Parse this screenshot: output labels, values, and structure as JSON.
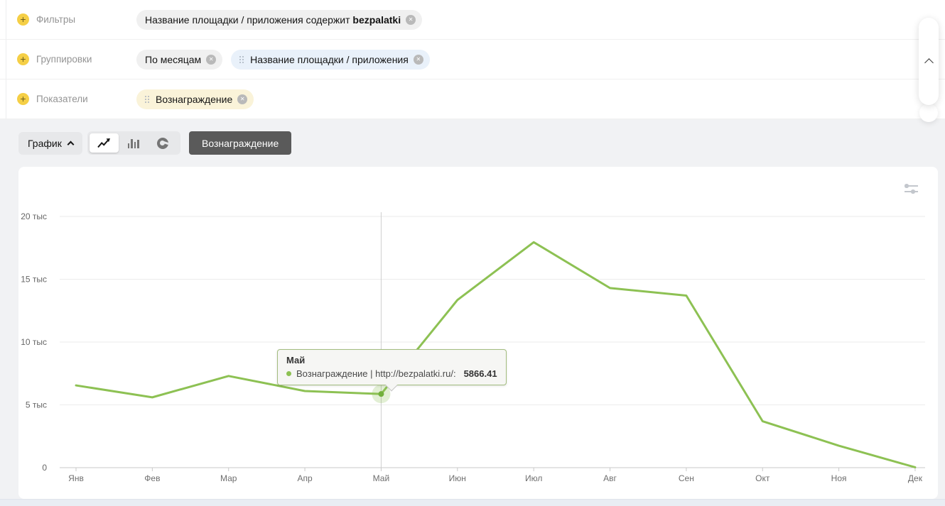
{
  "icons": {
    "add": "+",
    "close": "✕"
  },
  "colors": {
    "accent_green": "#8dc153",
    "point_green": "#72b03c",
    "chip_gray": "#f0f0f0",
    "chip_blue": "#e9f1fa",
    "chip_yellow": "#faf3d9",
    "plus_yellow": "#f5cf46",
    "dark_button": "#5a5a5a",
    "page_background": "#f1f2f4"
  },
  "filters_panel": {
    "rows": [
      {
        "label": "Фильтры",
        "chip": {
          "text": "Название площадки / приложения содержит",
          "bold": "bezpalatki"
        }
      },
      {
        "label": "Группировки",
        "chip1": {
          "text": "По месяцам"
        },
        "chip2": {
          "text": "Название площадки / приложения"
        }
      },
      {
        "label": "Показатели",
        "chip": {
          "text": "Вознаграждение"
        }
      }
    ]
  },
  "toolbar": {
    "chart_selector_label": "График",
    "chart_type_options": [
      "line",
      "bar",
      "pie"
    ],
    "selected_chart_type": "line",
    "series_button_label": "Вознаграждение"
  },
  "chart_data": {
    "type": "line",
    "title": "",
    "xlabel": "",
    "ylabel": "",
    "grid": true,
    "ylim": [
      0,
      20000
    ],
    "yticks": [
      {
        "value": 0,
        "label": "0"
      },
      {
        "value": 5000,
        "label": "5 тыс"
      },
      {
        "value": 10000,
        "label": "10 тыс"
      },
      {
        "value": 15000,
        "label": "15 тыс"
      },
      {
        "value": 20000,
        "label": "20 тыс"
      }
    ],
    "categories": [
      "Янв",
      "Фев",
      "Мар",
      "Апр",
      "Май",
      "Июн",
      "Июл",
      "Авг",
      "Сен",
      "Окт",
      "Ноя",
      "Дек"
    ],
    "series": [
      {
        "name": "Вознаграждение | http://bezpalatki.ru/",
        "color": "#8dc153",
        "values": [
          6550,
          5600,
          7300,
          6100,
          5866.41,
          13350,
          17950,
          14300,
          13700,
          3700,
          1750,
          30
        ]
      }
    ],
    "highlight_index": 4
  },
  "tooltip": {
    "title": "Май",
    "series_label": "Вознаграждение | http://bezpalatki.ru/:",
    "value": "5866.41"
  }
}
